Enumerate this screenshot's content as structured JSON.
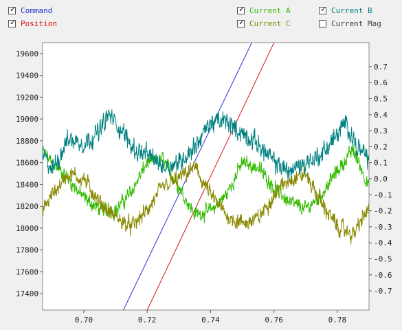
{
  "legend": {
    "items": [
      {
        "key": "command",
        "label": "Command",
        "checked": true,
        "color": "#2233cc"
      },
      {
        "key": "position",
        "label": "Position",
        "checked": true,
        "color": "#dd1111"
      },
      {
        "key": "current_a",
        "label": "Current A",
        "checked": true,
        "color": "#33bb00"
      },
      {
        "key": "current_c",
        "label": "Current C",
        "checked": true,
        "color": "#888800"
      },
      {
        "key": "current_b",
        "label": "Current B",
        "checked": true,
        "color": "#008080"
      },
      {
        "key": "current_mag",
        "label": "Current Mag",
        "checked": false,
        "color": "#444444"
      }
    ]
  },
  "check_glyph": "✓",
  "chart_data": {
    "type": "line",
    "xlim": [
      0.687,
      0.79
    ],
    "x_ticks": [
      "0.70",
      "0.72",
      "0.74",
      "0.76",
      "0.78"
    ],
    "x_tick_values": [
      0.7,
      0.72,
      0.74,
      0.76,
      0.78
    ],
    "y_left": {
      "lim": [
        17250,
        19700
      ],
      "ticks": [
        "17400",
        "17600",
        "17800",
        "18000",
        "18200",
        "18400",
        "18600",
        "18800",
        "19000",
        "19200",
        "19400",
        "19600"
      ],
      "tick_values": [
        17400,
        17600,
        17800,
        18000,
        18200,
        18400,
        18600,
        18800,
        19000,
        19200,
        19400,
        19600
      ]
    },
    "y_right": {
      "lim": [
        -0.82,
        0.85
      ],
      "ticks": [
        "0.7",
        "0.6",
        "0.5",
        "0.4",
        "0.3",
        "0.2",
        "0.1",
        "0.0",
        "-0.1",
        "-0.2",
        "-0.3",
        "-0.4",
        "-0.5",
        "-0.6",
        "-0.7"
      ],
      "tick_values": [
        0.7,
        0.6,
        0.5,
        0.4,
        0.3,
        0.2,
        0.1,
        0.0,
        -0.1,
        -0.2,
        -0.3,
        -0.4,
        -0.5,
        -0.6,
        -0.7
      ]
    },
    "grid": false,
    "series": [
      {
        "name": "Command",
        "axis": "left",
        "color": "#2233cc",
        "noise": 0,
        "points": [
          [
            0.7125,
            17250
          ],
          [
            0.753,
            19700
          ]
        ]
      },
      {
        "name": "Position",
        "axis": "left",
        "color": "#dd1111",
        "noise": 0,
        "points": [
          [
            0.72,
            17250
          ],
          [
            0.76,
            19700
          ]
        ]
      },
      {
        "name": "Current A",
        "axis": "right",
        "color": "#33bb00",
        "noise": 0.045,
        "points": [
          [
            0.687,
            0.17
          ],
          [
            0.69,
            0.1
          ],
          [
            0.695,
            0.0
          ],
          [
            0.7,
            -0.12
          ],
          [
            0.705,
            -0.19
          ],
          [
            0.71,
            -0.2
          ],
          [
            0.715,
            -0.08
          ],
          [
            0.72,
            0.1
          ],
          [
            0.725,
            0.12
          ],
          [
            0.73,
            -0.05
          ],
          [
            0.735,
            -0.22
          ],
          [
            0.74,
            -0.2
          ],
          [
            0.745,
            -0.1
          ],
          [
            0.75,
            0.1
          ],
          [
            0.755,
            0.07
          ],
          [
            0.76,
            -0.05
          ],
          [
            0.765,
            -0.15
          ],
          [
            0.77,
            -0.19
          ],
          [
            0.775,
            -0.1
          ],
          [
            0.78,
            0.05
          ],
          [
            0.785,
            0.18
          ],
          [
            0.79,
            -0.05
          ]
        ]
      },
      {
        "name": "Current C",
        "axis": "right",
        "color": "#888800",
        "noise": 0.05,
        "points": [
          [
            0.687,
            -0.2
          ],
          [
            0.69,
            -0.1
          ],
          [
            0.695,
            0.03
          ],
          [
            0.7,
            0.0
          ],
          [
            0.705,
            -0.15
          ],
          [
            0.71,
            -0.24
          ],
          [
            0.715,
            -0.3
          ],
          [
            0.72,
            -0.2
          ],
          [
            0.725,
            -0.05
          ],
          [
            0.73,
            0.0
          ],
          [
            0.735,
            0.07
          ],
          [
            0.74,
            -0.1
          ],
          [
            0.745,
            -0.23
          ],
          [
            0.75,
            -0.28
          ],
          [
            0.755,
            -0.25
          ],
          [
            0.76,
            -0.1
          ],
          [
            0.765,
            0.0
          ],
          [
            0.77,
            0.03
          ],
          [
            0.775,
            -0.15
          ],
          [
            0.78,
            -0.3
          ],
          [
            0.785,
            -0.35
          ],
          [
            0.79,
            -0.18
          ]
        ]
      },
      {
        "name": "Current B",
        "axis": "right",
        "color": "#008080",
        "noise": 0.06,
        "points": [
          [
            0.687,
            0.15
          ],
          [
            0.69,
            0.05
          ],
          [
            0.695,
            0.25
          ],
          [
            0.7,
            0.22
          ],
          [
            0.705,
            0.3
          ],
          [
            0.708,
            0.4
          ],
          [
            0.712,
            0.3
          ],
          [
            0.716,
            0.18
          ],
          [
            0.72,
            0.15
          ],
          [
            0.725,
            0.08
          ],
          [
            0.73,
            0.1
          ],
          [
            0.735,
            0.2
          ],
          [
            0.74,
            0.35
          ],
          [
            0.745,
            0.36
          ],
          [
            0.75,
            0.28
          ],
          [
            0.755,
            0.22
          ],
          [
            0.76,
            0.1
          ],
          [
            0.765,
            0.05
          ],
          [
            0.77,
            0.1
          ],
          [
            0.775,
            0.15
          ],
          [
            0.78,
            0.28
          ],
          [
            0.783,
            0.35
          ],
          [
            0.786,
            0.2
          ],
          [
            0.79,
            0.12
          ]
        ]
      }
    ]
  }
}
